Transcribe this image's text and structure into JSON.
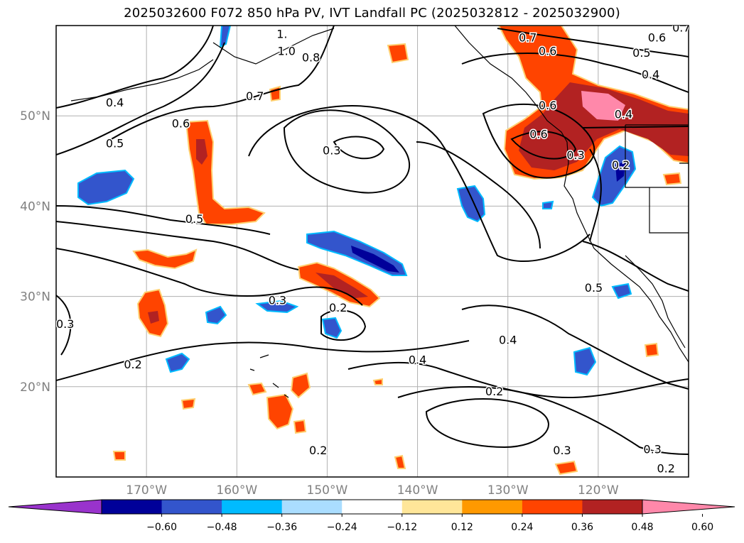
{
  "title": "2025032600 F072 850 hPa PV, IVT Landfall PC (2025032812 - 2025032900)",
  "map": {
    "lon_range": [
      -180,
      -110
    ],
    "lat_range": [
      10,
      60
    ],
    "lat_ticks": [
      {
        "lat": 50,
        "label": "50°N"
      },
      {
        "lat": 40,
        "label": "40°N"
      },
      {
        "lat": 30,
        "label": "30°N"
      },
      {
        "lat": 20,
        "label": "20°N"
      }
    ],
    "lon_ticks": [
      {
        "lon": -170,
        "label": "170°W"
      },
      {
        "lon": -160,
        "label": "160°W"
      },
      {
        "lon": -150,
        "label": "150°W"
      },
      {
        "lon": -140,
        "label": "140°W"
      },
      {
        "lon": -130,
        "label": "130°W"
      },
      {
        "lon": -120,
        "label": "120°W"
      }
    ],
    "grid": true,
    "contour_color": "#000000",
    "contour_labels": [
      {
        "label": "0.4",
        "lon": -173.5,
        "lat": 51.5
      },
      {
        "label": "0.5",
        "lon": -173.5,
        "lat": 47.0
      },
      {
        "label": "0.6",
        "lon": -166.2,
        "lat": 49.2
      },
      {
        "label": "0.7",
        "lon": -158.0,
        "lat": 52.2
      },
      {
        "label": "0.8",
        "lon": -151.8,
        "lat": 56.5
      },
      {
        "label": "1.0",
        "lon": -154.5,
        "lat": 57.2
      },
      {
        "label": "1.",
        "lon": -155.0,
        "lat": 59.1
      },
      {
        "label": "0.5",
        "lon": -164.7,
        "lat": 38.6
      },
      {
        "label": "0.3",
        "lon": -149.5,
        "lat": 46.2
      },
      {
        "label": "0.3",
        "lon": -155.5,
        "lat": 29.6
      },
      {
        "label": "0.2",
        "lon": -148.8,
        "lat": 28.8
      },
      {
        "label": "0.3",
        "lon": -179.0,
        "lat": 27.0
      },
      {
        "label": "0.2",
        "lon": -171.5,
        "lat": 22.5
      },
      {
        "label": "0.4",
        "lon": -140.0,
        "lat": 23.0
      },
      {
        "label": "0.4",
        "lon": -130.0,
        "lat": 25.2
      },
      {
        "label": "0.2",
        "lon": -131.5,
        "lat": 19.5
      },
      {
        "label": "0.2",
        "lon": -151.0,
        "lat": 13.0
      },
      {
        "label": "0.3",
        "lon": -124.0,
        "lat": 13.0
      },
      {
        "label": "0.3",
        "lon": -114.0,
        "lat": 13.1
      },
      {
        "label": "0.2",
        "lon": -112.5,
        "lat": 11.0
      },
      {
        "label": "0.5",
        "lon": -120.5,
        "lat": 31.0
      },
      {
        "label": "0.7",
        "lon": -127.8,
        "lat": 58.7
      },
      {
        "label": "0.6",
        "lon": -125.6,
        "lat": 57.2
      },
      {
        "label": "0.5",
        "lon": -115.2,
        "lat": 57.0
      },
      {
        "label": "0.6",
        "lon": -113.5,
        "lat": 58.7
      },
      {
        "label": "0.4",
        "lon": -114.2,
        "lat": 54.6
      },
      {
        "label": "0.4",
        "lon": -117.2,
        "lat": 50.2
      },
      {
        "label": "0.6",
        "lon": -126.6,
        "lat": 48.0
      },
      {
        "label": "0.6",
        "lon": -125.6,
        "lat": 51.2
      },
      {
        "label": "0.3",
        "lon": -122.5,
        "lat": 45.7
      },
      {
        "label": "0.2",
        "lon": -117.5,
        "lat": 44.6
      },
      {
        "label": "0.7",
        "lon": -110.8,
        "lat": 59.8
      }
    ]
  },
  "colorbar": {
    "colors": [
      "#9933cc",
      "#000099",
      "#3355cc",
      "#00bbff",
      "#aaddff",
      "#ffffff",
      "#ffe699",
      "#ff9900",
      "#ff4400",
      "#b22222",
      "#ff88aa"
    ],
    "tick_labels": [
      "−0.60",
      "−0.48",
      "−0.36",
      "−0.24",
      "−0.12",
      "0.12",
      "0.24",
      "0.36",
      "0.48",
      "0.60"
    ]
  }
}
